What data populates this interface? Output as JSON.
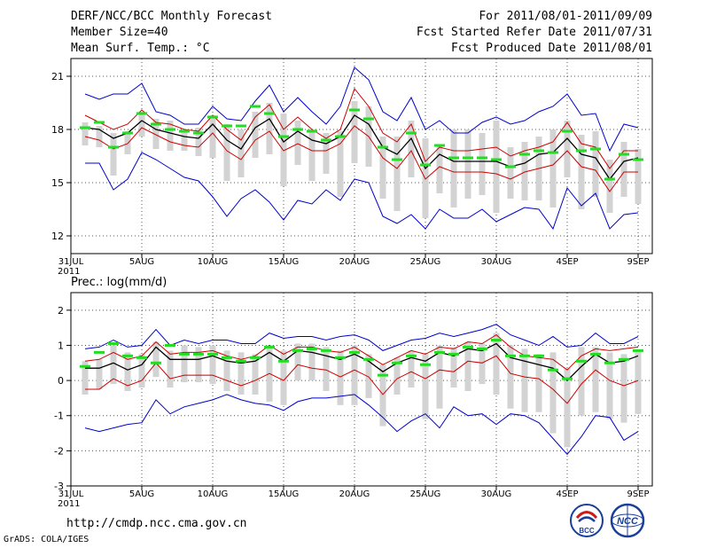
{
  "header": {
    "left": [
      "DERF/NCC/BCC Monthly Forecast",
      "Member Size=40",
      "Mean Surf. Temp.: °C"
    ],
    "right": [
      "For 2011/08/01-2011/09/09",
      "Fcst Started Refer Date 2011/07/31",
      "Fcst Produced Date 2011/08/01"
    ]
  },
  "footer": {
    "url": "http://cmdp.ncc.cma.gov.cn",
    "credit": "GrADS: COLA/IGES",
    "logo_bcc": "BCC",
    "logo_ncc": "NCC"
  },
  "colors": {
    "mean": "#000000",
    "spread": "#cc0000",
    "extreme": "#0000cc",
    "box": "#d3d3d3",
    "member": "#22dd22",
    "grid": "#555555"
  },
  "chart_data": [
    {
      "type": "line",
      "title": "Mean Surf. Temp.: °C",
      "ylim": [
        11,
        22
      ],
      "yticks": [
        12,
        15,
        18,
        21
      ],
      "x_ticks": [
        {
          "day": 0,
          "label": "31JUL",
          "sub": "2011"
        },
        {
          "day": 5,
          "label": "5AUG"
        },
        {
          "day": 10,
          "label": "10AUG"
        },
        {
          "day": 15,
          "label": "15AUG"
        },
        {
          "day": 20,
          "label": "20AUG"
        },
        {
          "day": 25,
          "label": "25AUG"
        },
        {
          "day": 30,
          "label": "30AUG"
        },
        {
          "day": 35,
          "label": "4SEP"
        },
        {
          "day": 40,
          "label": "9SEP"
        }
      ],
      "days": [
        1,
        2,
        3,
        4,
        5,
        6,
        7,
        8,
        9,
        10,
        11,
        12,
        13,
        14,
        15,
        16,
        17,
        18,
        19,
        20,
        21,
        22,
        23,
        24,
        25,
        26,
        27,
        28,
        29,
        30,
        31,
        32,
        33,
        34,
        35,
        36,
        37,
        38,
        39,
        40
      ],
      "series": [
        {
          "name": "max",
          "role": "extreme",
          "values": [
            20.0,
            19.7,
            20.0,
            20.0,
            20.6,
            19.0,
            18.8,
            18.3,
            18.3,
            19.3,
            18.6,
            18.5,
            19.6,
            20.5,
            19.0,
            19.8,
            19.0,
            18.3,
            19.3,
            21.5,
            20.8,
            19.0,
            18.5,
            19.8,
            18.0,
            18.5,
            17.8,
            17.8,
            18.4,
            18.7,
            18.3,
            18.5,
            19.0,
            19.3,
            20.0,
            18.8,
            18.9,
            16.8,
            18.3,
            18.1
          ]
        },
        {
          "name": "upper_spread",
          "role": "spread",
          "values": [
            18.8,
            18.4,
            18.0,
            18.3,
            19.1,
            18.4,
            18.3,
            18.0,
            17.9,
            18.8,
            18.0,
            17.4,
            18.7,
            19.4,
            18.0,
            18.7,
            18.0,
            17.5,
            18.0,
            20.3,
            19.3,
            17.8,
            17.3,
            18.3,
            16.2,
            17.0,
            16.8,
            16.8,
            16.9,
            17.0,
            16.5,
            16.8,
            17.0,
            17.3,
            18.4,
            17.2,
            17.0,
            15.8,
            16.8,
            16.8
          ]
        },
        {
          "name": "ensemble_mean",
          "role": "mean",
          "values": [
            18.1,
            18.0,
            17.5,
            17.8,
            18.5,
            18.0,
            17.8,
            17.6,
            17.5,
            18.3,
            17.4,
            16.9,
            18.1,
            18.6,
            17.3,
            17.9,
            17.4,
            17.2,
            17.6,
            18.8,
            18.3,
            17.0,
            16.6,
            17.5,
            15.8,
            16.6,
            16.2,
            16.2,
            16.2,
            16.2,
            15.9,
            16.1,
            16.6,
            16.7,
            17.5,
            16.6,
            16.4,
            15.2,
            16.2,
            16.4
          ]
        },
        {
          "name": "lower_spread",
          "role": "spread",
          "values": [
            17.6,
            17.4,
            16.9,
            17.2,
            18.1,
            17.7,
            17.3,
            17.1,
            17.0,
            17.8,
            16.8,
            16.3,
            17.4,
            17.9,
            16.8,
            17.2,
            16.8,
            16.8,
            17.2,
            18.2,
            17.6,
            16.4,
            15.8,
            16.8,
            15.2,
            15.9,
            15.6,
            15.6,
            15.6,
            15.5,
            15.2,
            15.6,
            15.8,
            16.0,
            16.8,
            15.9,
            15.7,
            14.5,
            15.6,
            15.6
          ]
        },
        {
          "name": "min",
          "role": "extreme",
          "values": [
            16.1,
            16.1,
            14.6,
            15.2,
            16.7,
            16.3,
            15.8,
            15.3,
            15.1,
            14.2,
            13.1,
            14.1,
            14.6,
            13.9,
            12.9,
            14.0,
            13.8,
            14.6,
            14.0,
            15.2,
            15.0,
            13.1,
            12.7,
            13.2,
            12.4,
            13.5,
            13.0,
            13.0,
            13.5,
            12.8,
            13.2,
            13.6,
            13.5,
            12.4,
            14.7,
            13.7,
            14.4,
            12.4,
            13.2,
            13.3
          ]
        }
      ],
      "boxes": [
        [
          17.1,
          18.4
        ],
        [
          17.0,
          18.2
        ],
        [
          15.4,
          17.8
        ],
        [
          16.6,
          17.9
        ],
        [
          17.6,
          19.0
        ],
        [
          16.9,
          18.6
        ],
        [
          16.8,
          18.5
        ],
        [
          16.8,
          17.9
        ],
        [
          16.5,
          18.1
        ],
        [
          16.4,
          18.8
        ],
        [
          15.1,
          18.3
        ],
        [
          15.3,
          18.0
        ],
        [
          16.4,
          19.0
        ],
        [
          16.6,
          19.5
        ],
        [
          14.8,
          18.9
        ],
        [
          16.0,
          18.5
        ],
        [
          15.1,
          18.0
        ],
        [
          15.5,
          17.8
        ],
        [
          14.2,
          17.9
        ],
        [
          16.1,
          19.6
        ],
        [
          15.9,
          19.3
        ],
        [
          14.1,
          17.6
        ],
        [
          13.4,
          17.6
        ],
        [
          15.3,
          18.5
        ],
        [
          13.0,
          17.5
        ],
        [
          14.4,
          17.1
        ],
        [
          13.6,
          18.0
        ],
        [
          14.1,
          18.0
        ],
        [
          14.3,
          17.8
        ],
        [
          13.3,
          18.5
        ],
        [
          14.1,
          17.0
        ],
        [
          14.0,
          17.3
        ],
        [
          14.0,
          17.6
        ],
        [
          13.6,
          18.0
        ],
        [
          15.3,
          18.5
        ],
        [
          13.5,
          17.7
        ],
        [
          14.2,
          17.9
        ],
        [
          13.3,
          16.3
        ],
        [
          14.2,
          17.3
        ],
        [
          13.8,
          16.9
        ]
      ],
      "markers": [
        18.1,
        18.4,
        17.0,
        17.8,
        18.9,
        18.3,
        18.0,
        17.9,
        17.8,
        18.7,
        18.2,
        18.2,
        19.3,
        18.9,
        17.6,
        18.0,
        17.9,
        17.4,
        17.6,
        19.1,
        18.6,
        17.0,
        16.3,
        17.8,
        16.0,
        17.1,
        16.4,
        16.4,
        16.4,
        16.3,
        15.9,
        16.6,
        16.8,
        16.7,
        17.9,
        16.8,
        16.9,
        15.2,
        16.6,
        16.3
      ]
    },
    {
      "type": "line",
      "title": "Prec.: log(mm/d)",
      "ylim": [
        -3,
        2.5
      ],
      "yticks": [
        -3,
        -2,
        -1,
        0,
        1,
        2
      ],
      "x_ticks": [
        {
          "day": 0,
          "label": "31JUL",
          "sub": "2011"
        },
        {
          "day": 5,
          "label": "5AUG"
        },
        {
          "day": 10,
          "label": "10AUG"
        },
        {
          "day": 15,
          "label": "15AUG"
        },
        {
          "day": 20,
          "label": "20AUG"
        },
        {
          "day": 25,
          "label": "25AUG"
        },
        {
          "day": 30,
          "label": "30AUG"
        },
        {
          "day": 35,
          "label": "4SEP"
        },
        {
          "day": 40,
          "label": "9SEP"
        }
      ],
      "days": [
        1,
        2,
        3,
        4,
        5,
        6,
        7,
        8,
        9,
        10,
        11,
        12,
        13,
        14,
        15,
        16,
        17,
        18,
        19,
        20,
        21,
        22,
        23,
        24,
        25,
        26,
        27,
        28,
        29,
        30,
        31,
        32,
        33,
        34,
        35,
        36,
        37,
        38,
        39,
        40
      ],
      "series": [
        {
          "name": "max",
          "role": "extreme",
          "values": [
            0.9,
            0.95,
            1.15,
            0.95,
            1.0,
            1.45,
            1.0,
            1.15,
            1.05,
            1.15,
            1.15,
            1.05,
            1.05,
            1.35,
            1.2,
            1.25,
            1.25,
            1.15,
            1.25,
            1.3,
            1.15,
            0.85,
            1.0,
            1.15,
            1.2,
            1.35,
            1.25,
            1.35,
            1.45,
            1.6,
            1.3,
            1.15,
            1.0,
            1.25,
            0.95,
            1.0,
            1.35,
            1.05,
            1.05,
            1.25
          ]
        },
        {
          "name": "upper_spread",
          "role": "spread",
          "values": [
            0.55,
            0.6,
            0.8,
            0.6,
            0.7,
            1.1,
            0.75,
            0.8,
            0.8,
            0.85,
            0.7,
            0.6,
            0.7,
            1.0,
            0.75,
            0.95,
            0.95,
            0.85,
            0.8,
            0.95,
            0.7,
            0.45,
            0.65,
            0.85,
            0.75,
            0.95,
            0.9,
            1.1,
            1.05,
            1.3,
            0.95,
            0.7,
            0.65,
            0.6,
            0.3,
            0.7,
            0.9,
            0.85,
            0.9,
            0.95
          ]
        },
        {
          "name": "ensemble_mean",
          "role": "mean",
          "values": [
            0.35,
            0.35,
            0.5,
            0.3,
            0.45,
            0.95,
            0.6,
            0.6,
            0.6,
            0.7,
            0.55,
            0.5,
            0.55,
            0.8,
            0.55,
            0.85,
            0.8,
            0.7,
            0.6,
            0.75,
            0.55,
            0.25,
            0.5,
            0.65,
            0.55,
            0.8,
            0.7,
            0.9,
            0.85,
            1.05,
            0.65,
            0.55,
            0.45,
            0.35,
            0.0,
            0.4,
            0.75,
            0.5,
            0.55,
            0.7
          ]
        },
        {
          "name": "lower_spread",
          "role": "spread",
          "values": [
            -0.25,
            -0.25,
            0.05,
            -0.15,
            0.0,
            0.5,
            0.05,
            0.15,
            0.15,
            0.15,
            0.0,
            -0.15,
            0.0,
            0.2,
            0.0,
            0.45,
            0.35,
            0.3,
            0.1,
            0.3,
            0.1,
            -0.4,
            0.05,
            0.25,
            0.05,
            0.3,
            0.25,
            0.55,
            0.5,
            0.7,
            0.2,
            0.1,
            0.05,
            -0.25,
            -0.65,
            -0.1,
            0.3,
            0.0,
            -0.15,
            0.0
          ]
        },
        {
          "name": "min",
          "role": "extreme",
          "values": [
            -1.35,
            -1.45,
            -1.35,
            -1.25,
            -1.2,
            -0.55,
            -0.95,
            -0.75,
            -0.65,
            -0.55,
            -0.4,
            -0.55,
            -0.65,
            -0.7,
            -0.85,
            -0.6,
            -0.5,
            -0.5,
            -0.45,
            -0.4,
            -0.7,
            -1.05,
            -1.45,
            -1.15,
            -0.95,
            -1.35,
            -0.75,
            -1.0,
            -0.95,
            -1.25,
            -0.95,
            -1.0,
            -1.2,
            -1.65,
            -2.1,
            -1.6,
            -1.0,
            -1.05,
            -1.7,
            -1.45
          ]
        }
      ],
      "boxes": [
        [
          -0.4,
          0.55
        ],
        [
          -0.25,
          0.6
        ],
        [
          -0.1,
          1.0
        ],
        [
          -0.3,
          0.8
        ],
        [
          -0.2,
          0.75
        ],
        [
          0.1,
          1.1
        ],
        [
          -0.2,
          0.85
        ],
        [
          -0.05,
          1.0
        ],
        [
          -0.05,
          0.95
        ],
        [
          -0.1,
          1.0
        ],
        [
          -0.3,
          0.85
        ],
        [
          -0.4,
          0.8
        ],
        [
          -0.4,
          0.75
        ],
        [
          -0.6,
          1.0
        ],
        [
          -0.7,
          0.85
        ],
        [
          0.0,
          1.05
        ],
        [
          0.0,
          1.05
        ],
        [
          -0.3,
          0.95
        ],
        [
          -0.7,
          0.85
        ],
        [
          -0.7,
          1.0
        ],
        [
          -0.5,
          0.75
        ],
        [
          -1.3,
          0.45
        ],
        [
          -0.4,
          0.65
        ],
        [
          -0.2,
          0.85
        ],
        [
          -1.1,
          0.75
        ],
        [
          -0.8,
          1.0
        ],
        [
          -0.2,
          0.95
        ],
        [
          -0.3,
          1.1
        ],
        [
          -0.1,
          1.05
        ],
        [
          -0.4,
          1.35
        ],
        [
          -0.8,
          1.0
        ],
        [
          -0.9,
          0.9
        ],
        [
          -0.9,
          0.75
        ],
        [
          -1.5,
          0.8
        ],
        [
          -1.9,
          0.35
        ],
        [
          -1.0,
          0.95
        ],
        [
          -0.9,
          0.95
        ],
        [
          -1.1,
          0.8
        ],
        [
          -1.2,
          0.75
        ],
        [
          -0.95,
          0.85
        ]
      ],
      "markers": [
        0.4,
        0.8,
        1.05,
        0.7,
        0.65,
        0.5,
        1.0,
        0.75,
        0.75,
        0.75,
        0.65,
        0.55,
        0.65,
        0.95,
        0.55,
        0.85,
        0.9,
        0.85,
        0.65,
        0.8,
        0.6,
        0.15,
        0.5,
        0.7,
        0.45,
        0.8,
        0.75,
        0.95,
        0.9,
        1.15,
        0.7,
        0.7,
        0.7,
        0.3,
        0.05,
        0.55,
        0.75,
        0.5,
        0.6,
        0.85
      ]
    }
  ]
}
